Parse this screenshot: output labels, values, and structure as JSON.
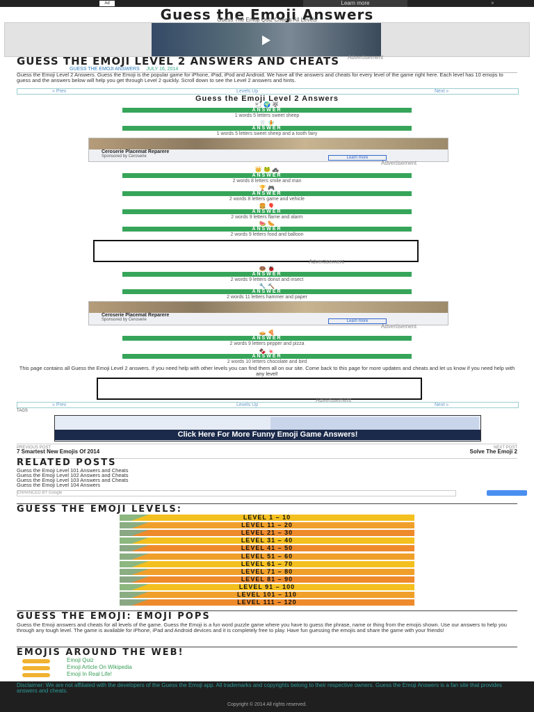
{
  "topbar": {
    "ad_badge": "Ad",
    "learn_more": "Learn more",
    "close": "×"
  },
  "site": {
    "title": "Guess the Emoji Answers",
    "tagline": "Guess The Emoji Quiz Cheats All Levels"
  },
  "ads": {
    "label": "Advertisement"
  },
  "post": {
    "title": "GUESS THE EMOJI LEVEL 2 ANSWERS AND CHEATS",
    "author": "GUESS THE EMOJI ANSWERS",
    "date": "JULY 16, 2014",
    "intro": "Guess the Emoji Level 2 Answers. Guess the Emoji is the popular game for iPhone, iPad, iPod and Android. We have all the answers and cheats for every level of the game right here. Each level has 10 emojis to guess and the answers below will help you get through Level 2 quickly. Scroll down to see the Level 2 answers and hints."
  },
  "nav": {
    "prev": "« Prev",
    "levels": "Levels Up",
    "next": "Next »"
  },
  "section_title": "Guess the Emoji Level 2 Answers",
  "items": [
    {
      "emoji": "🐑 🌍 🐺",
      "hint": "1 words 5 letters sweet sheep",
      "answer": "ANSWER"
    },
    {
      "emoji": "🦷 🧚",
      "hint": "1 words 5 letters sweet sheep and a tooth fairy",
      "answer": "ANSWER"
    },
    {
      "emoji": "👑 🐸 🚓",
      "hint": "2 words 8 letters smile and man",
      "answer": "ANSWER"
    },
    {
      "emoji": "🏆 🎮",
      "hint": "2 words 8 letters game and vehicle",
      "answer": "ANSWER"
    },
    {
      "emoji": "🍔 🎈",
      "hint": "2 words 9 letters flame and alarm",
      "answer": "ANSWER"
    },
    {
      "emoji": "🍉 🌭",
      "hint": "2 words 9 letters food and balloon",
      "answer": "ANSWER"
    },
    {
      "emoji": "🍩 🐞",
      "hint": "2 words 9 letters donut and insect",
      "answer": "ANSWER"
    },
    {
      "emoji": "🔧 🔨",
      "hint": "2 words 11 letters hammer and paper",
      "answer": "ANSWER"
    },
    {
      "emoji": "🥧 🍕",
      "hint": "2 words 9 letters pepper and pizza",
      "answer": "ANSWER"
    },
    {
      "emoji": "🍫 🍬",
      "hint": "2 words 10 letters chocolate and bird",
      "answer": "ANSWER"
    }
  ],
  "native_ad": {
    "title": "Ceroserie Placemat Reparere",
    "sub": "Sponsored by Ceroserie",
    "button": "Learn more"
  },
  "closing": "This page contains all Guess the Emoji Level 2 answers. If you need help with other levels you can find them all on our site. Come back to this page for more updates and cheats and let us know if you need help with any level!",
  "tags": "TAGS",
  "banner": {
    "text": "Click Here For More Funny Emoji Game Answers!"
  },
  "prev_post": {
    "label": "PREVIOUS POST",
    "title": "7 Smartest New Emojis Of 2014"
  },
  "next_post": {
    "label": "NEXT POST",
    "title": "Solve The Emoji 2"
  },
  "related": {
    "title": "RELATED POSTS",
    "items": [
      "Guess the Emoji Level 101 Answers and Cheats",
      "Guess the Emoji Level 102 Answers and Cheats",
      "Guess the Emoji Level 103 Answers and Cheats",
      "Guess the Emoji Level 104 Answers"
    ]
  },
  "search": {
    "placeholder": "ENHANCED BY Google"
  },
  "levels": {
    "title": "GUESS THE EMOJI LEVELS:",
    "items": [
      "LEVEL 1 – 10",
      "LEVEL 11 – 20",
      "LEVEL 21 – 30",
      "LEVEL 31 – 40",
      "LEVEL 41 – 50",
      "LEVEL 51 – 60",
      "LEVEL 61 – 70",
      "LEVEL 71 – 80",
      "LEVEL 81 – 90",
      "LEVEL 91 – 100",
      "LEVEL 101 – 110",
      "LEVEL 111 – 120"
    ],
    "colors": [
      "#f4c01f",
      "#f0a02a",
      "#ee8a2c",
      "#f4c01f",
      "#ee8a2c",
      "#f0a02a",
      "#f4c01f",
      "#f0a02a",
      "#ee8a2c",
      "#f4c01f",
      "#f0a02a",
      "#ee8a2c"
    ]
  },
  "tips": {
    "title": "GUESS THE EMOJI: EMOJI POPS",
    "text": "Guess the Emoji answers and cheats for all levels of the game. Guess the Emoji is a fun word puzzle game where you have to guess the phrase, name or thing from the emojis shown. Use our answers to help you through any tough level. The game is available for iPhone, iPad and Android devices and it is completely free to play. Have fun guessing the emojis and share the game with your friends!"
  },
  "web": {
    "title": "EMOJIS AROUND THE WEB!",
    "items": [
      "Emoji Quiz",
      "Emoji Article On Wikipedia",
      "Emoji In Real Life!"
    ]
  },
  "footer": {
    "text": "Disclaimer: We are not affiliated with the developers of the Guess the Emoji app. All trademarks and copyrights belong to their respective owners. Guess the Emoji Answers is a fan site that provides answers and cheats.",
    "copyright": "Copyright © 2014 All rights reserved."
  }
}
